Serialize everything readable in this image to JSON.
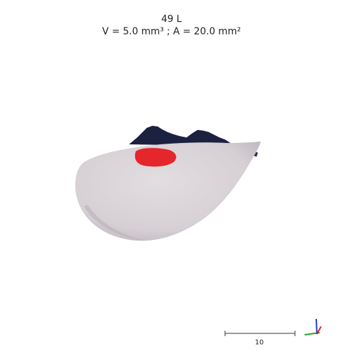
{
  "header": {
    "title": "49 L",
    "subtitle": "V = 5.0 mm³ ; A = 20.0 mm²"
  },
  "scale_bar": {
    "label": "10"
  },
  "colors": {
    "surface": "#d9d3d8",
    "surface_shadow": "#b9b1b8",
    "backside": "#1c2140",
    "lesion": "#e5262b",
    "axis_x": "#22a022",
    "axis_y": "#2233cc",
    "axis_z": "#dd2222"
  }
}
